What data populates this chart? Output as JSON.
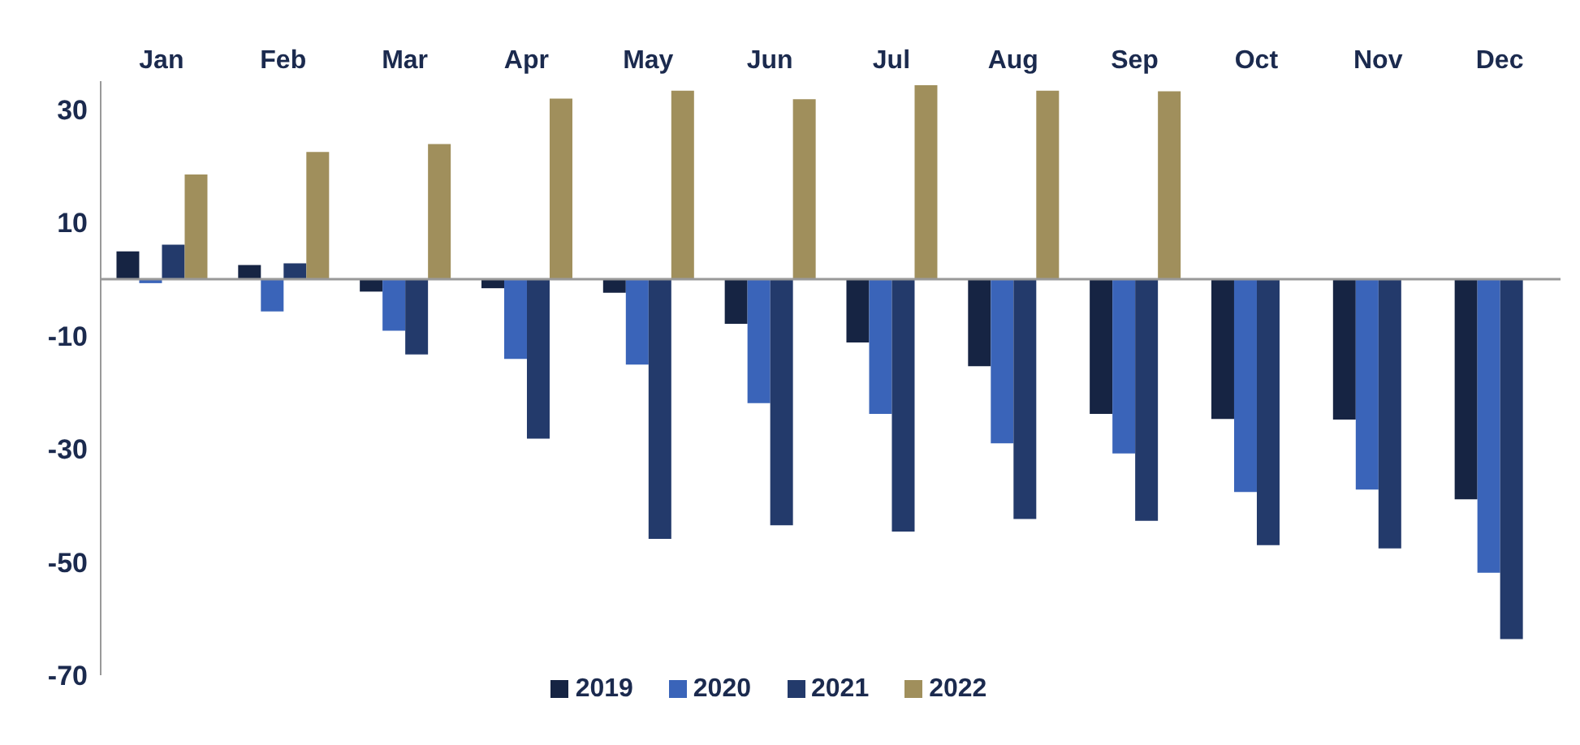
{
  "chart_data": {
    "type": "bar",
    "categories": [
      "Jan",
      "Feb",
      "Mar",
      "Apr",
      "May",
      "Jun",
      "Jul",
      "Aug",
      "Sep",
      "Oct",
      "Nov",
      "Dec"
    ],
    "series": [
      {
        "name": "2019",
        "color": "#162443",
        "values": [
          4.9,
          2.5,
          -2.2,
          -1.6,
          -2.4,
          -7.9,
          -11.2,
          -15.4,
          -23.8,
          -24.7,
          -24.8,
          -38.9
        ]
      },
      {
        "name": "2020",
        "color": "#3a64b9",
        "values": [
          -0.7,
          -5.7,
          -9.1,
          -14.1,
          -15.1,
          -21.9,
          -23.8,
          -29.0,
          -30.8,
          -37.6,
          -37.2,
          -51.9
        ]
      },
      {
        "name": "2021",
        "color": "#233a6b",
        "values": [
          6.1,
          2.8,
          -13.3,
          -28.2,
          -45.9,
          -43.5,
          -44.6,
          -42.4,
          -42.7,
          -47.0,
          -47.6,
          -63.6
        ]
      },
      {
        "name": "2022",
        "color": "#a08f5c",
        "values": [
          18.5,
          22.5,
          23.9,
          31.9,
          33.3,
          31.8,
          34.3,
          33.3,
          33.2,
          null,
          null,
          null
        ]
      }
    ],
    "ylim": [
      -70,
      35
    ],
    "yticks": [
      30,
      10,
      -10,
      -30,
      -50,
      -70
    ],
    "legend": "bottom"
  }
}
